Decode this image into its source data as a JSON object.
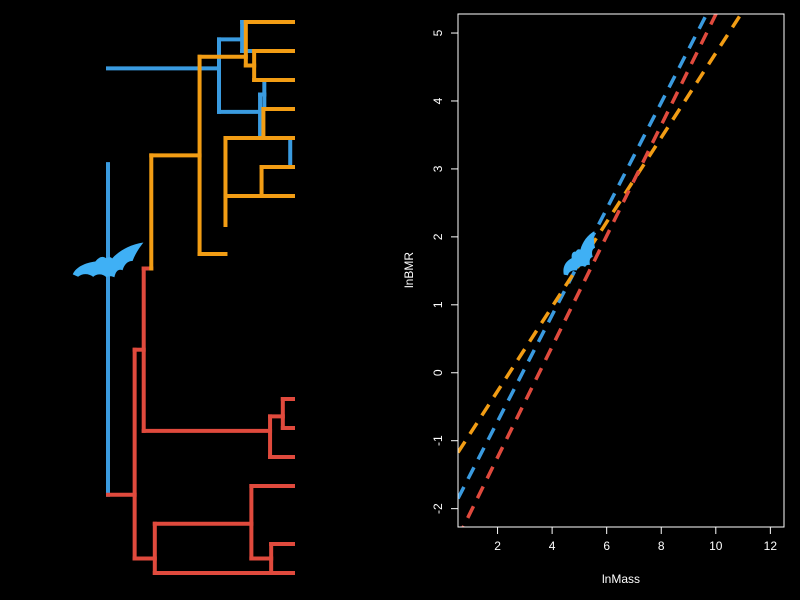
{
  "colors": {
    "background": "#000000",
    "foreground": "#ffffff",
    "blue": "#3a9be0",
    "orange": "#f29d14",
    "red": "#e04a3d",
    "silhouette": "#3fb0f5"
  },
  "icons": {
    "tree_silhouette": "bat-silhouette-icon",
    "plot_silhouette": "bat-silhouette-icon"
  },
  "tree": {
    "tips": 20,
    "root_height": 1.0,
    "edges": [
      {
        "parent_h": 0.0,
        "h": 0.0,
        "from_tip": 4.9,
        "to_tip": 16.3,
        "clade": "blue"
      },
      {
        "parent_h": 0.0,
        "h": 0.6,
        "from_tip": 1.6,
        "to_tip": 1.6,
        "clade": "blue"
      },
      {
        "parent_h": 0.6,
        "h": 0.6,
        "from_tip": 0.6,
        "to_tip": 3.1,
        "clade": "blue"
      },
      {
        "parent_h": 0.6,
        "h": 0.725,
        "from_tip": 0.6,
        "to_tip": 0.6,
        "clade": "blue"
      },
      {
        "parent_h": 0.725,
        "h": 0.725,
        "from_tip": 0.0,
        "to_tip": 1.0,
        "clade": "blue"
      },
      {
        "parent_h": 0.725,
        "h": 1.0,
        "from_tip": 0.0,
        "to_tip": 0.0,
        "clade": "blue"
      },
      {
        "parent_h": 0.725,
        "h": 1.0,
        "from_tip": 1.0,
        "to_tip": 1.0,
        "clade": "blue"
      },
      {
        "parent_h": 0.6,
        "h": 0.822,
        "from_tip": 3.1,
        "to_tip": 3.1,
        "clade": "blue"
      },
      {
        "parent_h": 0.822,
        "h": 0.822,
        "from_tip": 2.5,
        "to_tip": 4.0,
        "clade": "blue"
      },
      {
        "parent_h": 0.822,
        "h": 0.845,
        "from_tip": 2.5,
        "to_tip": 2.5,
        "clade": "blue"
      },
      {
        "parent_h": 0.845,
        "h": 0.845,
        "from_tip": 2.0,
        "to_tip": 3.0,
        "clade": "blue"
      },
      {
        "parent_h": 0.845,
        "h": 1.0,
        "from_tip": 2.0,
        "to_tip": 2.0,
        "clade": "blue"
      },
      {
        "parent_h": 0.845,
        "h": 1.0,
        "from_tip": 3.0,
        "to_tip": 3.0,
        "clade": "blue"
      },
      {
        "parent_h": 0.822,
        "h": 0.985,
        "from_tip": 4.0,
        "to_tip": 4.0,
        "clade": "blue"
      },
      {
        "parent_h": 0.985,
        "h": 0.985,
        "from_tip": 4.0,
        "to_tip": 5.0,
        "clade": "blue"
      },
      {
        "parent_h": 0.985,
        "h": 1.0,
        "from_tip": 4.0,
        "to_tip": 4.0,
        "clade": "blue"
      },
      {
        "parent_h": 0.985,
        "h": 1.0,
        "from_tip": 5.0,
        "to_tip": 5.0,
        "clade": "blue"
      },
      {
        "parent_h": 0.0,
        "h": 0.144,
        "from_tip": 16.3,
        "to_tip": 16.3,
        "clade": "red"
      },
      {
        "parent_h": 0.144,
        "h": 0.144,
        "from_tip": 11.3,
        "to_tip": 18.5,
        "clade": "red"
      },
      {
        "parent_h": 0.144,
        "h": 0.193,
        "from_tip": 11.3,
        "to_tip": 11.3,
        "clade": "red"
      },
      {
        "parent_h": 0.193,
        "h": 0.193,
        "from_tip": 8.5,
        "to_tip": 14.1,
        "clade": "red"
      },
      {
        "parent_h": 0.193,
        "h": 0.234,
        "from_tip": 8.5,
        "to_tip": 8.5,
        "clade": "red"
      },
      {
        "parent_h": 0.193,
        "h": 0.876,
        "from_tip": 14.1,
        "to_tip": 14.1,
        "clade": "red"
      },
      {
        "parent_h": 0.876,
        "h": 0.876,
        "from_tip": 13.6,
        "to_tip": 15.0,
        "clade": "red"
      },
      {
        "parent_h": 0.876,
        "h": 0.945,
        "from_tip": 13.6,
        "to_tip": 13.6,
        "clade": "red"
      },
      {
        "parent_h": 0.945,
        "h": 0.945,
        "from_tip": 13.0,
        "to_tip": 14.0,
        "clade": "red"
      },
      {
        "parent_h": 0.945,
        "h": 1.0,
        "from_tip": 13.0,
        "to_tip": 13.0,
        "clade": "red"
      },
      {
        "parent_h": 0.945,
        "h": 1.0,
        "from_tip": 14.0,
        "to_tip": 14.0,
        "clade": "red"
      },
      {
        "parent_h": 0.876,
        "h": 1.0,
        "from_tip": 15.0,
        "to_tip": 15.0,
        "clade": "red"
      },
      {
        "parent_h": 0.144,
        "h": 0.253,
        "from_tip": 18.5,
        "to_tip": 18.5,
        "clade": "red"
      },
      {
        "parent_h": 0.253,
        "h": 0.253,
        "from_tip": 17.3,
        "to_tip": 19.0,
        "clade": "red"
      },
      {
        "parent_h": 0.253,
        "h": 0.775,
        "from_tip": 17.3,
        "to_tip": 17.3,
        "clade": "red"
      },
      {
        "parent_h": 0.775,
        "h": 0.775,
        "from_tip": 16.0,
        "to_tip": 18.5,
        "clade": "red"
      },
      {
        "parent_h": 0.775,
        "h": 1.0,
        "from_tip": 16.0,
        "to_tip": 16.0,
        "clade": "red"
      },
      {
        "parent_h": 0.775,
        "h": 0.882,
        "from_tip": 18.5,
        "to_tip": 18.5,
        "clade": "red"
      },
      {
        "parent_h": 0.882,
        "h": 0.882,
        "from_tip": 18.0,
        "to_tip": 19.0,
        "clade": "red"
      },
      {
        "parent_h": 0.882,
        "h": 1.0,
        "from_tip": 18.0,
        "to_tip": 18.0,
        "clade": "red"
      },
      {
        "parent_h": 0.882,
        "h": 1.0,
        "from_tip": 19.0,
        "to_tip": 19.0,
        "clade": "red"
      },
      {
        "parent_h": 0.253,
        "h": 1.0,
        "from_tip": 19.0,
        "to_tip": 19.0,
        "clade": "red"
      },
      {
        "parent_h": 0.234,
        "h": 0.234,
        "from_tip": 4.6,
        "to_tip": 8.5,
        "clade": "orange"
      },
      {
        "parent_h": 0.234,
        "h": 0.495,
        "from_tip": 4.6,
        "to_tip": 4.6,
        "clade": "orange"
      },
      {
        "parent_h": 0.495,
        "h": 0.495,
        "from_tip": 1.2,
        "to_tip": 8.0,
        "clade": "orange"
      },
      {
        "parent_h": 0.495,
        "h": 0.745,
        "from_tip": 1.2,
        "to_tip": 1.2,
        "clade": "orange"
      },
      {
        "parent_h": 0.745,
        "h": 0.745,
        "from_tip": 0.0,
        "to_tip": 1.5,
        "clade": "orange"
      },
      {
        "parent_h": 0.745,
        "h": 1.0,
        "from_tip": 0.0,
        "to_tip": 0.0,
        "clade": "orange"
      },
      {
        "parent_h": 0.745,
        "h": 0.79,
        "from_tip": 1.5,
        "to_tip": 1.5,
        "clade": "orange"
      },
      {
        "parent_h": 0.79,
        "h": 0.79,
        "from_tip": 1.0,
        "to_tip": 2.0,
        "clade": "orange"
      },
      {
        "parent_h": 0.79,
        "h": 1.0,
        "from_tip": 1.0,
        "to_tip": 1.0,
        "clade": "orange"
      },
      {
        "parent_h": 0.79,
        "h": 1.0,
        "from_tip": 2.0,
        "to_tip": 2.0,
        "clade": "orange"
      },
      {
        "parent_h": 0.495,
        "h": 0.635,
        "from_tip": 8.0,
        "to_tip": 8.0,
        "clade": "orange"
      },
      {
        "parent_h": 0.635,
        "h": 0.635,
        "from_tip": 4.0,
        "to_tip": 7.0,
        "clade": "orange"
      },
      {
        "parent_h": 0.635,
        "h": 0.84,
        "from_tip": 4.0,
        "to_tip": 4.0,
        "clade": "orange"
      },
      {
        "parent_h": 0.84,
        "h": 0.84,
        "from_tip": 3.0,
        "to_tip": 4.0,
        "clade": "orange"
      },
      {
        "parent_h": 0.84,
        "h": 1.0,
        "from_tip": 3.0,
        "to_tip": 3.0,
        "clade": "orange"
      },
      {
        "parent_h": 0.84,
        "h": 1.0,
        "from_tip": 4.0,
        "to_tip": 4.0,
        "clade": "orange"
      },
      {
        "parent_h": 0.635,
        "h": 0.83,
        "from_tip": 6.0,
        "to_tip": 6.0,
        "clade": "orange"
      },
      {
        "parent_h": 0.83,
        "h": 0.83,
        "from_tip": 5.0,
        "to_tip": 6.0,
        "clade": "orange"
      },
      {
        "parent_h": 0.83,
        "h": 1.0,
        "from_tip": 5.0,
        "to_tip": 5.0,
        "clade": "orange"
      },
      {
        "parent_h": 0.83,
        "h": 1.0,
        "from_tip": 6.0,
        "to_tip": 6.0,
        "clade": "orange"
      }
    ]
  },
  "chart_data": {
    "type": "line",
    "title": "",
    "xlabel": "lnMass",
    "ylabel": "lnBMR",
    "xlim": [
      0.55,
      12.5
    ],
    "ylim": [
      -2.27,
      5.28
    ],
    "xticks": [
      2,
      4,
      6,
      8,
      10,
      12
    ],
    "yticks": [
      -2,
      -1,
      0,
      1,
      2,
      3,
      4,
      5
    ],
    "grid": false,
    "line_style": "dashed",
    "series": [
      {
        "color": "#3a9be0",
        "intercept": -2.28,
        "slope": 0.782
      },
      {
        "color": "#f29d14",
        "intercept": -1.515,
        "slope": 0.622
      },
      {
        "color": "#e04a3d",
        "intercept": -2.875,
        "slope": 0.815
      }
    ]
  }
}
